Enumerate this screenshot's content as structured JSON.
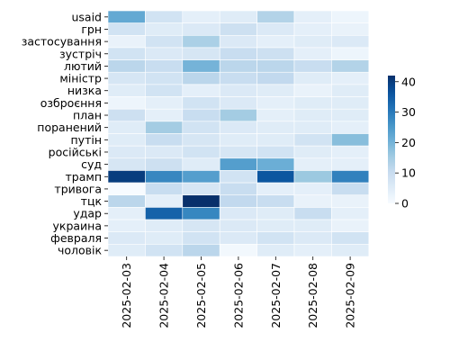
{
  "chart_data": {
    "type": "heatmap",
    "title": "",
    "xlabel": "",
    "ylabel": "",
    "x": [
      "2025-02-03",
      "2025-02-04",
      "2025-02-05",
      "2025-02-06",
      "2025-02-07",
      "2025-02-08",
      "2025-02-09"
    ],
    "y": [
      "usaid",
      "грн",
      "застосування",
      "зустріч",
      "лютий",
      "міністр",
      "низка",
      "озброєння",
      "план",
      "поранений",
      "путін",
      "російські",
      "суд",
      "трамп",
      "тривога",
      "тцк",
      "удар",
      "украина",
      "февраля",
      "чоловік"
    ],
    "values": [
      [
        22,
        8,
        4,
        5,
        13,
        4,
        2
      ],
      [
        8,
        5,
        6,
        9,
        6,
        4,
        3
      ],
      [
        3,
        8,
        14,
        6,
        4,
        5,
        6
      ],
      [
        8,
        6,
        7,
        10,
        9,
        4,
        2
      ],
      [
        12,
        10,
        20,
        12,
        12,
        10,
        13
      ],
      [
        7,
        8,
        12,
        10,
        11,
        5,
        4
      ],
      [
        5,
        8,
        4,
        6,
        5,
        3,
        5
      ],
      [
        2,
        4,
        8,
        6,
        4,
        5,
        5
      ],
      [
        9,
        4,
        10,
        15,
        4,
        5,
        5
      ],
      [
        5,
        15,
        8,
        6,
        5,
        5,
        4
      ],
      [
        5,
        10,
        7,
        5,
        5,
        8,
        18
      ],
      [
        6,
        6,
        8,
        7,
        8,
        5,
        4
      ],
      [
        7,
        9,
        5,
        24,
        21,
        4,
        4
      ],
      [
        40,
        28,
        24,
        8,
        36,
        16,
        29
      ],
      [
        0,
        10,
        7,
        10,
        4,
        4,
        10
      ],
      [
        12,
        4,
        42,
        11,
        10,
        3,
        3
      ],
      [
        4,
        34,
        28,
        6,
        5,
        10,
        4
      ],
      [
        4,
        5,
        7,
        6,
        5,
        5,
        3
      ],
      [
        6,
        5,
        8,
        6,
        8,
        6,
        8
      ],
      [
        5,
        8,
        12,
        1,
        5,
        4,
        5
      ]
    ],
    "colorbar": {
      "ticks": [
        0,
        10,
        20,
        30,
        40
      ],
      "min": 0,
      "max": 42,
      "colormap": "Blues"
    },
    "grid": false,
    "cell_borders": true,
    "legend": "colorbar-right"
  }
}
